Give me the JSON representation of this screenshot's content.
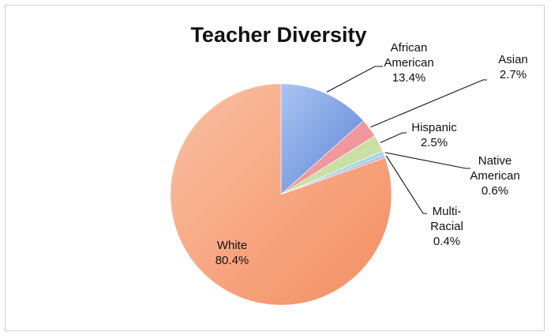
{
  "chart_data": {
    "type": "pie",
    "title": "Teacher Diversity",
    "slices": [
      {
        "label_lines": [
          "African",
          "American",
          "13.4%"
        ],
        "value": 13.4,
        "color": "#7fa6e6"
      },
      {
        "label_lines": [
          "Asian",
          "2.7%"
        ],
        "value": 2.7,
        "color": "#f1969a"
      },
      {
        "label_lines": [
          "Hispanic",
          "2.5%"
        ],
        "value": 2.5,
        "color": "#c9dfa3"
      },
      {
        "label_lines": [
          "Native",
          "American",
          "0.6%"
        ],
        "value": 0.6,
        "color": "#9fd6e6"
      },
      {
        "label_lines": [
          "Multi-",
          "Racial",
          "0.4%"
        ],
        "value": 0.4,
        "color": "#b8b4e8"
      },
      {
        "label_lines": [
          "White",
          "80.4%"
        ],
        "value": 80.4,
        "color": "#f7a47e"
      }
    ],
    "legend": "none"
  }
}
